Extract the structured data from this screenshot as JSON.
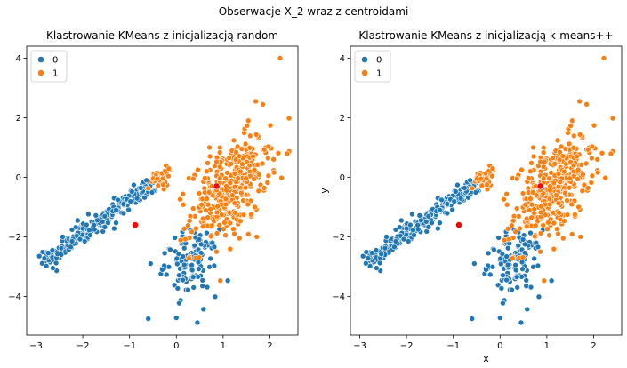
{
  "figure": {
    "suptitle": "Obserwacje X_2 wraz z centroidami"
  },
  "chart_data": [
    {
      "type": "scatter",
      "title": "Klastrowanie KMeans z inicjalizacją random",
      "xlabel": "",
      "ylabel": "",
      "xlim": [
        -3.2,
        2.6
      ],
      "ylim": [
        -5.3,
        4.4
      ],
      "xticks": [
        -3,
        -2,
        -1,
        0,
        1,
        2
      ],
      "yticks": [
        -4,
        -2,
        0,
        2,
        4
      ],
      "grid": false,
      "legend": {
        "position": "top-left",
        "entries": [
          "0",
          "1"
        ]
      },
      "series": [
        {
          "name": "0",
          "color": "#1f77b4",
          "points": []
        },
        {
          "name": "1",
          "color": "#ff7f0e",
          "points": []
        }
      ],
      "centroids": {
        "color": "#ff0000",
        "points": [
          [
            -0.88,
            -1.6
          ],
          [
            0.86,
            -0.3
          ]
        ]
      }
    },
    {
      "type": "scatter",
      "title": "Klastrowanie KMeans z inicjalizacją k-means++",
      "xlabel": "x",
      "ylabel": "y",
      "xlim": [
        -3.2,
        2.6
      ],
      "ylim": [
        -5.3,
        4.4
      ],
      "xticks": [
        -3,
        -2,
        -1,
        0,
        1,
        2
      ],
      "yticks": [
        -4,
        -2,
        0,
        2,
        4
      ],
      "grid": false,
      "legend": {
        "position": "top-left",
        "entries": [
          "0",
          "1"
        ]
      },
      "series": [
        {
          "name": "0",
          "color": "#1f77b4",
          "points": []
        },
        {
          "name": "1",
          "color": "#ff7f0e",
          "points": []
        }
      ],
      "centroids": {
        "color": "#ff0000",
        "points": [
          [
            -0.88,
            -1.6
          ],
          [
            0.86,
            -0.3
          ]
        ]
      }
    }
  ]
}
